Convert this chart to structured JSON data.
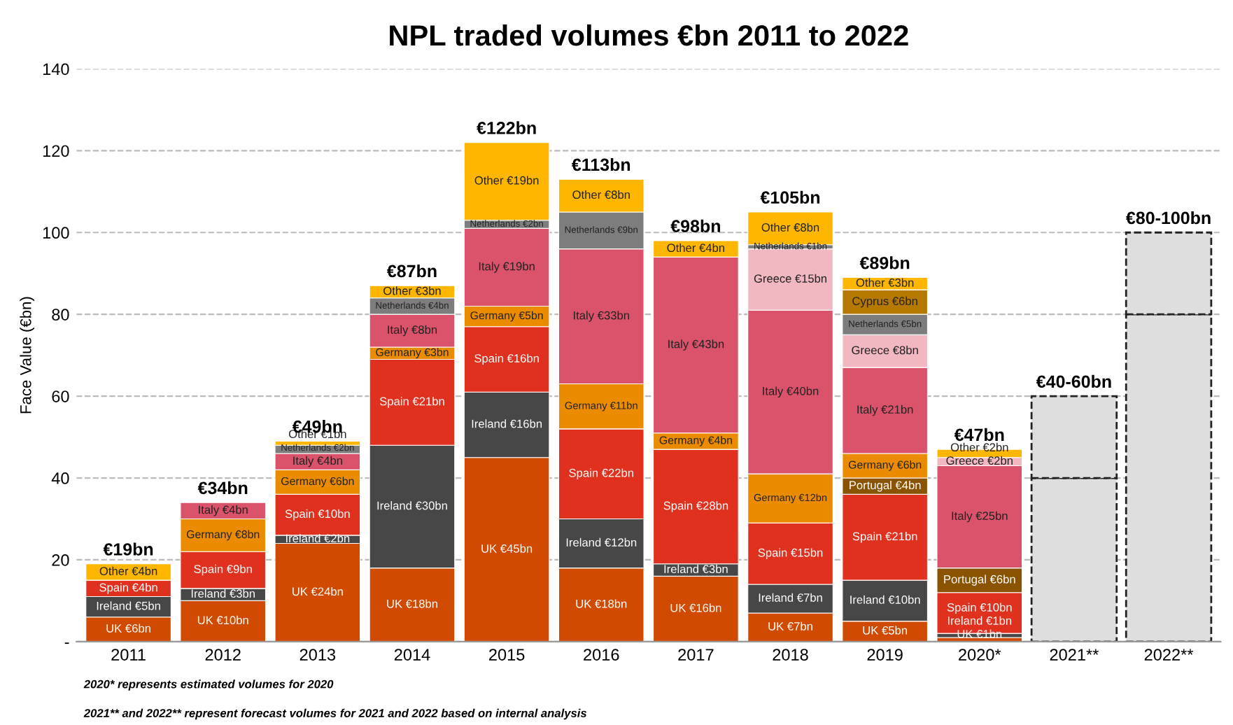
{
  "chart_data": {
    "type": "bar",
    "stacked": true,
    "title": "NPL traded volumes €bn 2011 to 2022",
    "ylabel": "Face Value (€bn)",
    "categories": [
      "2011",
      "2012",
      "2013",
      "2014",
      "2015",
      "2016",
      "2017",
      "2018",
      "2019",
      "2020*",
      "2021**",
      "2022**"
    ],
    "series": [
      {
        "name": "UK",
        "color": "#d04a02",
        "values": [
          6,
          10,
          24,
          18,
          45,
          18,
          16,
          7,
          5,
          1,
          null,
          null
        ],
        "value_labels": [
          "€6bn",
          "€10bn",
          "€24bn",
          "€18bn",
          "€45bn",
          "€18bn",
          "€16bn",
          "€7bn",
          "€5bn",
          "€1bn",
          null,
          null
        ]
      },
      {
        "name": "Ireland",
        "color": "#474747",
        "values": [
          5,
          3,
          2,
          30,
          16,
          12,
          3,
          7,
          10,
          1,
          null,
          null
        ],
        "value_labels": [
          "€5bn",
          "€3bn",
          "€2bn",
          "€30bn",
          "€16bn",
          "€12bn",
          "€3bn",
          "€7bn",
          "€10bn",
          "€1bn",
          null,
          null
        ]
      },
      {
        "name": "Spain",
        "color": "#e0301e",
        "values": [
          4,
          9,
          10,
          21,
          16,
          22,
          28,
          15,
          21,
          10,
          null,
          null
        ],
        "value_labels": [
          "€4bn",
          "€9bn",
          "€10bn",
          "€21bn",
          "€16bn",
          "€22bn",
          "€28bn",
          "€15bn",
          "€21bn",
          "€10bn",
          null,
          null
        ]
      },
      {
        "name": "Portugal",
        "color": "#8a5300",
        "values": [
          null,
          null,
          null,
          null,
          null,
          null,
          null,
          null,
          4,
          6,
          null,
          null
        ],
        "value_labels": [
          null,
          null,
          null,
          null,
          null,
          null,
          null,
          null,
          "€4bn",
          "€6bn",
          null,
          null
        ]
      },
      {
        "name": "Germany",
        "color": "#eb8c00",
        "values": [
          null,
          8,
          6,
          3,
          5,
          11,
          4,
          12,
          6,
          null,
          null,
          null
        ],
        "value_labels": [
          null,
          "€8bn",
          "€6bn",
          "€3bn",
          "€5bn",
          "€11bn",
          "€4bn",
          "€12bn",
          "€6bn",
          null,
          null,
          null
        ]
      },
      {
        "name": "Italy",
        "color": "#db536a",
        "values": [
          null,
          4,
          4,
          8,
          19,
          33,
          43,
          40,
          21,
          25,
          null,
          null
        ],
        "value_labels": [
          null,
          "€4bn",
          "€4bn",
          "€8bn",
          "€19bn",
          "€33bn",
          "€43bn",
          "€40bn",
          "€21bn",
          "€25bn",
          null,
          null
        ]
      },
      {
        "name": "Greece",
        "color": "#f1b8c2",
        "values": [
          null,
          null,
          null,
          null,
          null,
          null,
          null,
          15,
          8,
          2,
          null,
          null
        ],
        "value_labels": [
          null,
          null,
          null,
          null,
          null,
          null,
          null,
          "€15bn",
          "€8bn",
          "€2bn",
          null,
          null
        ]
      },
      {
        "name": "Netherlands",
        "color": "#7d7d7d",
        "values": [
          null,
          null,
          2,
          4,
          2,
          9,
          null,
          1,
          5,
          null,
          null,
          null
        ],
        "value_labels": [
          null,
          null,
          "€2bn",
          "€4bn",
          "€2bn",
          "€9bn",
          null,
          "€1bn",
          "€5bn",
          null,
          null,
          null
        ]
      },
      {
        "name": "Cyprus",
        "color": "#b57900",
        "values": [
          null,
          null,
          null,
          null,
          null,
          null,
          null,
          null,
          6,
          null,
          null,
          null
        ],
        "value_labels": [
          null,
          null,
          null,
          null,
          null,
          null,
          null,
          null,
          "€6bn",
          null,
          null,
          null
        ]
      },
      {
        "name": "Other",
        "color": "#ffb600",
        "values": [
          4,
          null,
          1,
          3,
          19,
          8,
          4,
          8,
          3,
          2,
          null,
          null
        ],
        "value_labels": [
          "€4bn",
          null,
          "€1bn",
          "€3bn",
          "€19bn",
          "€8bn",
          "€4bn",
          "€8bn",
          "€3bn",
          "€2bn",
          null,
          null
        ]
      },
      {
        "color": "#dedede",
        "line_style": "dashed",
        "values": [
          null,
          null,
          null,
          null,
          null,
          null,
          null,
          null,
          null,
          null,
          40,
          80
        ]
      },
      {
        "color": "#dedede",
        "line_style": "dashed",
        "values": [
          null,
          null,
          null,
          null,
          null,
          null,
          null,
          null,
          null,
          null,
          20,
          20
        ]
      }
    ],
    "totals": [
      "€19bn",
      "€34bn",
      "€49bn",
      "€87bn",
      "€122bn",
      "€113bn",
      "€98bn",
      "€105bn",
      "€89bn",
      "€47bn",
      "€40-60bn",
      "€80-100bn"
    ],
    "ylim": [
      0,
      140
    ],
    "yticks": [
      {
        "value": 0,
        "label": "-"
      },
      20,
      40,
      60,
      80,
      100,
      120,
      140
    ],
    "grid": "y",
    "legend": false,
    "annotations": [
      "2020* represents estimated volumes for 2020",
      "2021** and 2022** represent forecast volumes for 2021 and 2022 based on internal analysis"
    ]
  }
}
